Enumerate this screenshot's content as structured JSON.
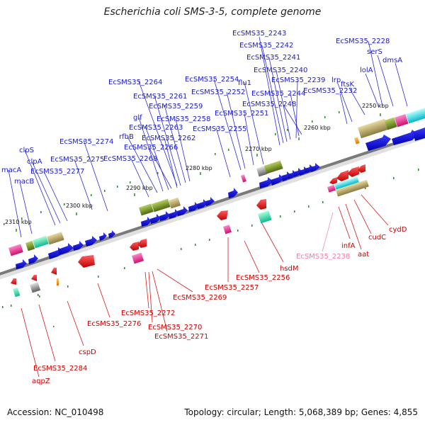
{
  "title": "Escherichia coli SMS-3-5, complete genome",
  "accession": "Accession: NC_010498",
  "summary": "Topology: circular; Length: 5,068,389 bp; Genes: 4,855",
  "colors": {
    "forward_gene": "#1010e0",
    "reverse_gene": "#e00000",
    "forward_label": "#1a1ad0",
    "reverse_label": "#cc0000",
    "pseudo_label": "#f07bb0",
    "tick": "#2a8a2a",
    "backbone": "#777777"
  },
  "scale_ticks": [
    "2250 kbp",
    "2260 kbp",
    "2270 kbp",
    "2280 kbp",
    "2290 kbp",
    "2300 kbp",
    "2310 kbp"
  ],
  "forward_labels": [
    "EcSMS35_2243",
    "EcSMS35_2242",
    "EcSMS35_2241",
    "EcSMS35_2240",
    "EcSMS35_2239",
    "EcSMS35_2244",
    "EcSMS35_2248",
    "EcSMS35_2228",
    "serS",
    "dmsA",
    "lolA",
    "ftsK",
    "lrp",
    "EcSMS35_2232",
    "EcSMS35_2254",
    "flu1",
    "EcSMS35_2252",
    "EcSMS35_2251",
    "EcSMS35_2255",
    "EcSMS35_2264",
    "EcSMS35_2261",
    "EcSMS35_2259",
    "EcSMS35_2258",
    "glf",
    "EcSMS35_2263",
    "rfbB",
    "EcSMS35_2262",
    "EcSMS35_2266",
    "EcSMS35_2268",
    "EcSMS35_2274",
    "EcSMS35_2275",
    "clpS",
    "clpA",
    "EcSMS35_2277",
    "macA",
    "macB"
  ],
  "reverse_labels": [
    "cydD",
    "cudC",
    "aat",
    "infA",
    "hsdM",
    "EcSMS35_2256",
    "EcSMS35_2257",
    "EcSMS35_2269",
    "EcSMS35_2272",
    "EcSMS35_2270",
    "EcSMS35_2271",
    "EcSMS35_2276",
    "cspD",
    "EcSMS35_2284",
    "aqpZ"
  ],
  "pseudo_labels": [
    "EcSMS35_2238"
  ]
}
